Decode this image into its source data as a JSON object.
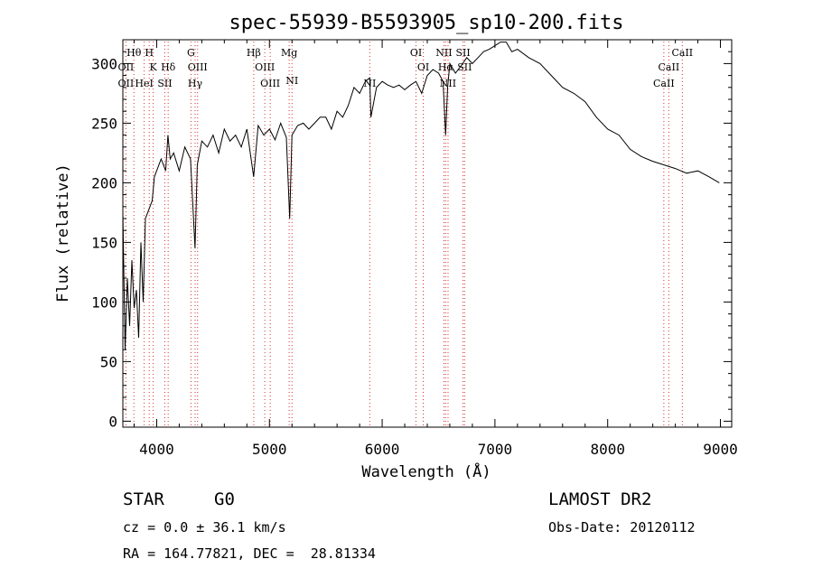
{
  "chart_data": {
    "type": "line",
    "title": "spec-55939-B5593905_sp10-200.fits",
    "xlabel": "Wavelength (Å)",
    "ylabel": "Flux (relative)",
    "xlim": [
      3700,
      9100
    ],
    "ylim": [
      -5,
      320
    ],
    "xticks": [
      4000,
      5000,
      6000,
      7000,
      8000,
      9000
    ],
    "yticks": [
      0,
      50,
      100,
      150,
      200,
      250,
      300
    ],
    "series": [
      {
        "x": [
          3700,
          3720,
          3740,
          3760,
          3780,
          3800,
          3820,
          3840,
          3860,
          3880,
          3900,
          3920,
          3940,
          3960,
          3980,
          4000,
          4020,
          4040,
          4060,
          4080,
          4100,
          4120,
          4150,
          4200,
          4250,
          4300,
          4340,
          4360,
          4400,
          4450,
          4500,
          4550,
          4600,
          4650,
          4700,
          4750,
          4800,
          4860,
          4900,
          4950,
          5000,
          5050,
          5100,
          5150,
          5180,
          5200,
          5250,
          5300,
          5350,
          5400,
          5450,
          5500,
          5550,
          5600,
          5650,
          5700,
          5750,
          5800,
          5850,
          5890,
          5900,
          5950,
          6000,
          6050,
          6100,
          6150,
          6200,
          6250,
          6300,
          6350,
          6400,
          6450,
          6500,
          6540,
          6563,
          6580,
          6600,
          6650,
          6700,
          6750,
          6800,
          6850,
          6900,
          6950,
          7000,
          7050,
          7100,
          7150,
          7200,
          7300,
          7400,
          7500,
          7600,
          7700,
          7800,
          7900,
          8000,
          8100,
          8200,
          8300,
          8400,
          8500,
          8600,
          8700,
          8800,
          8900,
          8990
        ],
        "y": [
          175,
          60,
          120,
          80,
          135,
          95,
          110,
          70,
          150,
          100,
          170,
          175,
          180,
          185,
          205,
          210,
          215,
          220,
          215,
          210,
          240,
          220,
          225,
          210,
          230,
          220,
          145,
          215,
          235,
          230,
          240,
          225,
          245,
          235,
          240,
          230,
          245,
          205,
          248,
          240,
          245,
          236,
          250,
          238,
          170,
          240,
          248,
          250,
          245,
          250,
          255,
          255,
          245,
          260,
          255,
          265,
          280,
          275,
          285,
          288,
          255,
          280,
          285,
          282,
          280,
          282,
          278,
          282,
          285,
          275,
          290,
          295,
          292,
          285,
          240,
          280,
          300,
          292,
          298,
          305,
          300,
          305,
          310,
          312,
          315,
          318,
          318,
          310,
          312,
          305,
          300,
          290,
          280,
          275,
          268,
          255,
          245,
          240,
          228,
          222,
          218,
          215,
          212,
          208,
          210,
          205,
          200
        ]
      }
    ],
    "lines": [
      {
        "name": "Hθ",
        "x": 3798,
        "row": 0
      },
      {
        "name": "H",
        "x": 3934,
        "row": 0
      },
      {
        "name": "OII",
        "x": 3727,
        "row": 1
      },
      {
        "name": "K",
        "x": 3969,
        "row": 1
      },
      {
        "name": "Hδ",
        "x": 4102,
        "row": 1
      },
      {
        "name": "OII",
        "x": 3727,
        "row": 2
      },
      {
        "name": "HeI",
        "x": 3889,
        "row": 2
      },
      {
        "name": "SII",
        "x": 4072,
        "row": 2
      },
      {
        "name": "G",
        "x": 4304,
        "row": 0
      },
      {
        "name": "OIII",
        "x": 4363,
        "row": 1
      },
      {
        "name": "Hγ",
        "x": 4341,
        "row": 2
      },
      {
        "name": "Hβ",
        "x": 4861,
        "row": 0
      },
      {
        "name": "OIII",
        "x": 4959,
        "row": 1
      },
      {
        "name": "OIII",
        "x": 5007,
        "row": 2
      },
      {
        "name": "Mg",
        "x": 5175,
        "row": 0
      },
      {
        "name": "NI",
        "x": 5200,
        "row": 3
      },
      {
        "name": "NI",
        "x": 5890,
        "row": 2
      },
      {
        "name": "OI",
        "x": 6300,
        "row": 0
      },
      {
        "name": "OI",
        "x": 6364,
        "row": 1
      },
      {
        "name": "NII",
        "x": 6548,
        "row": 0
      },
      {
        "name": "SII",
        "x": 6717,
        "row": 0
      },
      {
        "name": "Hα",
        "x": 6563,
        "row": 1
      },
      {
        "name": "SII",
        "x": 6731,
        "row": 1
      },
      {
        "name": "NII",
        "x": 6584,
        "row": 2
      },
      {
        "name": "CaII",
        "x": 8662,
        "row": 0
      },
      {
        "name": "CaII",
        "x": 8542,
        "row": 1
      },
      {
        "name": "CaII",
        "x": 8498,
        "row": 2
      }
    ]
  },
  "info": {
    "class_label": "STAR",
    "subclass_label": "G0",
    "survey": "LAMOST DR2",
    "cz": "cz = 0.0 ± 36.1 km/s",
    "obs_date": "Obs-Date: 20120112",
    "coords": "RA = 164.77821, DEC =  28.81334"
  },
  "colors": {
    "line": "#000000",
    "marker": "#d83030"
  }
}
